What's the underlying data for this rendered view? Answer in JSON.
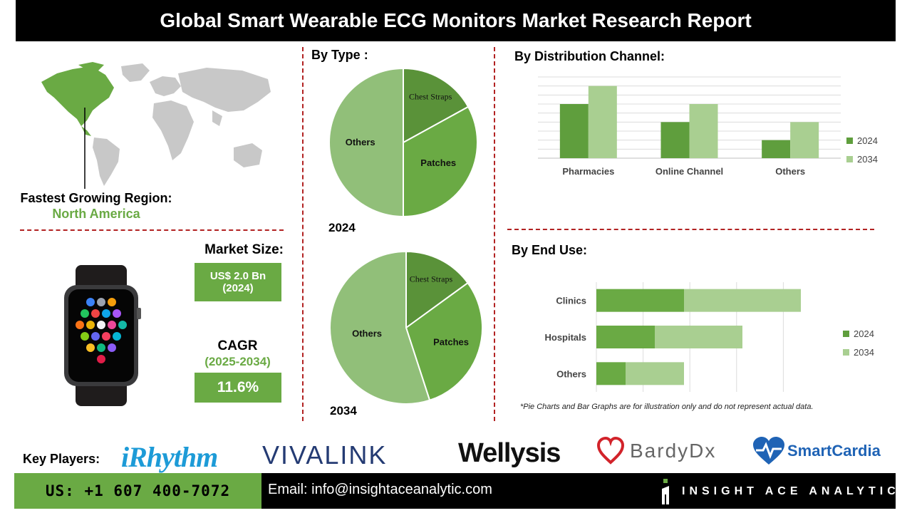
{
  "header": {
    "title": "Global Smart Wearable ECG Monitors Market Research Report"
  },
  "region": {
    "label": "Fastest Growing Region:",
    "value": "North America"
  },
  "market": {
    "size_label": "Market Size:",
    "size_value_line1": "US$ 2.0 Bn",
    "size_value_line2": "(2024)",
    "cagr_label": "CAGR",
    "cagr_years": "(2025-2034)",
    "cagr_value": "11.6%"
  },
  "sections": {
    "by_type": "By Type :",
    "by_distribution": "By  Distribution Channel:",
    "by_end_use": "By End Use:"
  },
  "colors": {
    "dark_green": "#5f9e3d",
    "mid_green": "#6aaa44",
    "light_green": "#91bf79",
    "pale_green": "#a9cf91",
    "accent_red": "#b22222"
  },
  "chart_data": [
    {
      "type": "pie",
      "title": "2024",
      "labels": [
        "Chest Straps",
        "Patches",
        "Others"
      ],
      "values": [
        17,
        33,
        50
      ],
      "colors": [
        "#5a9239",
        "#6aaa44",
        "#91bf79"
      ]
    },
    {
      "type": "pie",
      "title": "2034",
      "labels": [
        "Chest Straps",
        "Patches",
        "Others"
      ],
      "values": [
        15,
        30,
        55
      ],
      "colors": [
        "#5a9239",
        "#6aaa44",
        "#91bf79"
      ]
    },
    {
      "type": "bar",
      "title": "By  Distribution Channel:",
      "categories": [
        "Pharmacies",
        "Online Channel",
        "Others"
      ],
      "series": [
        {
          "name": "2024",
          "values": [
            3,
            2,
            1
          ]
        },
        {
          "name": "2034",
          "values": [
            4,
            3,
            2
          ]
        }
      ],
      "ylim": [
        0,
        4.5
      ],
      "grid": true,
      "legend": "right"
    },
    {
      "type": "bar",
      "orientation": "horizontal",
      "stacked": true,
      "title": "By End Use:",
      "categories": [
        "Clinics",
        "Hospitals",
        "Others"
      ],
      "series": [
        {
          "name": "2024",
          "values": [
            3,
            2,
            1
          ]
        },
        {
          "name": "2034",
          "values": [
            4,
            3,
            2
          ]
        }
      ],
      "xlim": [
        0,
        8
      ],
      "grid": true,
      "legend": "right"
    }
  ],
  "note": "*Pie Charts and Bar Graphs are for illustration only and do not represent actual data.",
  "key_players": {
    "label": "Key Players:",
    "logos": [
      "iRhythm",
      "VIVALINK",
      "Wellysis",
      "BardyDx",
      "SmartCardia"
    ]
  },
  "footer": {
    "phone": "US: +1 607 400-7072",
    "email": "Email: info@insightaceanalytic.com",
    "brand": "INSIGHT ACE ANALYTIC"
  }
}
